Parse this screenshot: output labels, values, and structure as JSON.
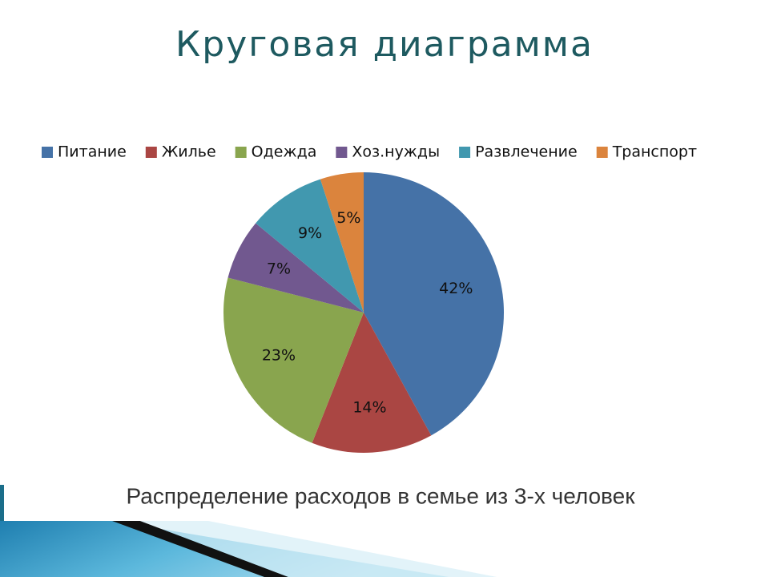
{
  "chart_data": {
    "type": "pie",
    "title": "Круговая диаграмма",
    "categories": [
      "Питание",
      "Жилье",
      "Одежда",
      "Хоз.нужды",
      "Развлечение",
      "Транспорт"
    ],
    "values": [
      42,
      14,
      23,
      7,
      9,
      5
    ],
    "value_labels": [
      "42%",
      "14%",
      "23%",
      "7%",
      "9%",
      "5%"
    ],
    "colors": [
      "#4572a7",
      "#aa4643",
      "#89a54e",
      "#71588f",
      "#4198af",
      "#db843d"
    ],
    "legend": "top",
    "caption": "Распределение расходов в семье из 3-х человек"
  }
}
